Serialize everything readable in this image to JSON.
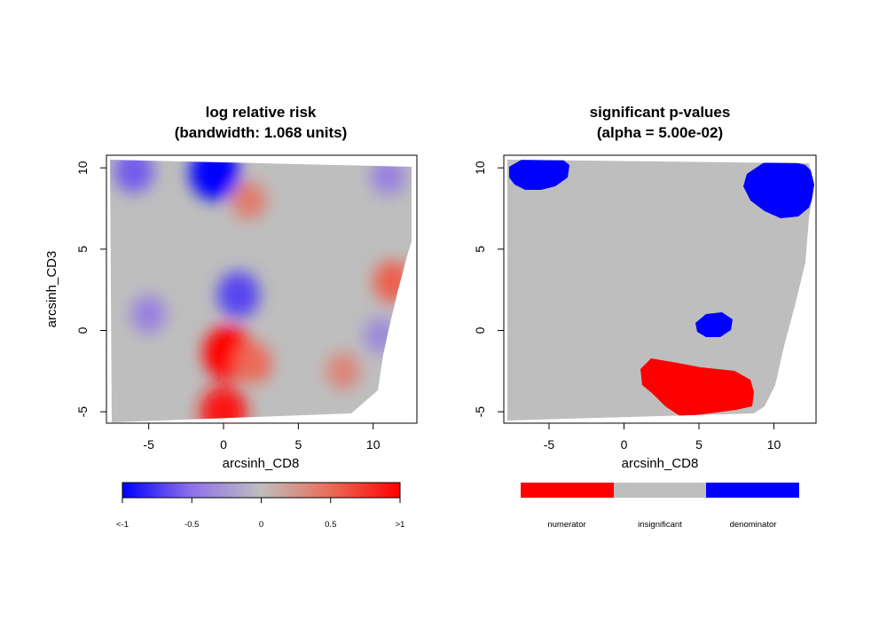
{
  "chart_data": [
    {
      "type": "heatmap",
      "title": "log relative risk",
      "subtitle": "(bandwidth: 1.068 units)",
      "xlabel": "arcsinh_CD8",
      "ylabel": "arcsinh_CD3",
      "xlim": [
        -7.5,
        12.5
      ],
      "ylim": [
        -5.6,
        10.9
      ],
      "xticks": [
        "-5",
        "0",
        "5",
        "10"
      ],
      "xtick_values": [
        -5,
        0,
        5,
        10
      ],
      "yticks": [
        "-5",
        "0",
        "5",
        "10"
      ],
      "ytick_values": [
        -5,
        0,
        5,
        10
      ],
      "legend": {
        "type": "continuous",
        "placement": "bottom",
        "range": [
          -1,
          1
        ],
        "colors": [
          "#0000ff",
          "#8f72e8",
          "#bebebe",
          "#ea6b58",
          "#ff0000"
        ],
        "tick_values": [
          -1,
          -0.5,
          0,
          0.5,
          1
        ],
        "tick_labels": [
          "<-1",
          "-0.5",
          "0",
          "0.5",
          ">1"
        ]
      },
      "hotspots": [
        {
          "x": 0.3,
          "y": -1.4,
          "value": 1.0
        },
        {
          "x": 0.0,
          "y": -5.0,
          "value": 0.9
        },
        {
          "x": 2.0,
          "y": -2.0,
          "value": 0.5
        },
        {
          "x": 1.7,
          "y": 8.0,
          "value": 0.4
        },
        {
          "x": 11.3,
          "y": 3.0,
          "value": 0.55
        },
        {
          "x": 8.0,
          "y": -2.5,
          "value": 0.35
        },
        {
          "x": -0.6,
          "y": 9.7,
          "value": -1.0
        },
        {
          "x": 1.0,
          "y": 2.2,
          "value": -0.7
        },
        {
          "x": -6.0,
          "y": 9.8,
          "value": -0.6
        },
        {
          "x": 11.0,
          "y": 9.5,
          "value": -0.4
        },
        {
          "x": 10.5,
          "y": -0.3,
          "value": -0.35
        },
        {
          "x": -5.0,
          "y": 1.0,
          "value": -0.4
        }
      ]
    },
    {
      "type": "heatmap",
      "title": "significant p-values",
      "subtitle": "(alpha = 5.00e-02)",
      "xlabel": "arcsinh_CD8",
      "ylabel": "",
      "xlim": [
        -7.5,
        12.5
      ],
      "ylim": [
        -5.6,
        10.9
      ],
      "xticks": [
        "-5",
        "0",
        "5",
        "10"
      ],
      "xtick_values": [
        -5,
        0,
        5,
        10
      ],
      "yticks": [
        "-5",
        "0",
        "5",
        "10"
      ],
      "ytick_values": [
        -5,
        0,
        5,
        10
      ],
      "legend": {
        "type": "categorical",
        "placement": "bottom",
        "categories": [
          "numerator",
          "insignificant",
          "denominator"
        ],
        "colors": [
          "#ff0000",
          "#bebebe",
          "#0000ff"
        ]
      },
      "regions": [
        {
          "category": "denominator",
          "x": -5.7,
          "y": 9.8
        },
        {
          "category": "denominator",
          "x": 10.5,
          "y": 8.8
        },
        {
          "category": "denominator",
          "x": 6.0,
          "y": 0.4
        },
        {
          "category": "numerator",
          "x": 4.8,
          "y": -3.4
        }
      ]
    }
  ]
}
